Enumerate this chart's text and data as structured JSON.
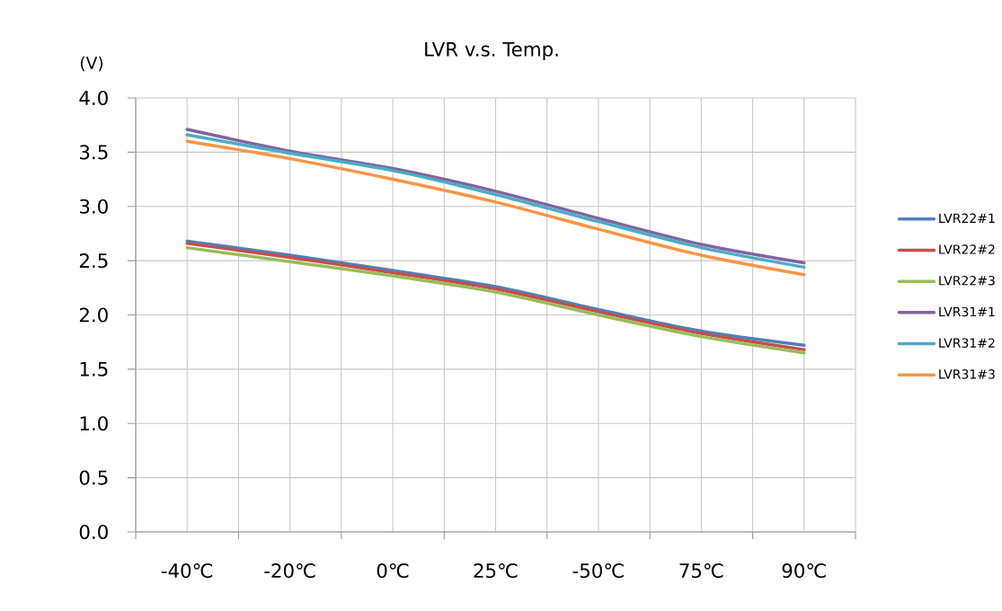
{
  "chart_data": {
    "type": "line",
    "title": "LVR v.s. Temp.",
    "ylabel": "(V)",
    "categories": [
      "-40℃",
      "-20℃",
      "0℃",
      "25℃",
      "-50℃",
      "75℃",
      "90℃"
    ],
    "series": [
      {
        "name": "LVR22#1",
        "color": "#4f81bd",
        "values": [
          2.68,
          2.55,
          2.41,
          2.26,
          2.05,
          1.85,
          1.72
        ]
      },
      {
        "name": "LVR22#2",
        "color": "#c0504d",
        "values": [
          2.66,
          2.53,
          2.39,
          2.24,
          2.03,
          1.83,
          1.68
        ]
      },
      {
        "name": "LVR22#3",
        "color": "#9bbb59",
        "values": [
          2.62,
          2.49,
          2.36,
          2.21,
          2.0,
          1.8,
          1.65
        ]
      },
      {
        "name": "LVR31#1",
        "color": "#8064a2",
        "values": [
          3.71,
          3.51,
          3.35,
          3.14,
          2.89,
          2.65,
          2.48
        ]
      },
      {
        "name": "LVR31#2",
        "color": "#4bacc6",
        "values": [
          3.66,
          3.49,
          3.33,
          3.11,
          2.86,
          2.62,
          2.44
        ]
      },
      {
        "name": "LVR31#3",
        "color": "#f79646",
        "values": [
          3.6,
          3.44,
          3.25,
          3.04,
          2.79,
          2.55,
          2.37
        ]
      }
    ],
    "ylim": [
      0,
      4
    ],
    "yticks": [
      {
        "value": 0,
        "label": "0.0"
      },
      0.5,
      {
        "value": 1,
        "label": "1.0"
      },
      1.5,
      {
        "value": 2,
        "label": "2.0"
      },
      2.5,
      {
        "value": 3,
        "label": "3.0"
      },
      3.5,
      {
        "value": 4,
        "label": "4.0"
      }
    ],
    "grid": true,
    "legend": "right"
  }
}
